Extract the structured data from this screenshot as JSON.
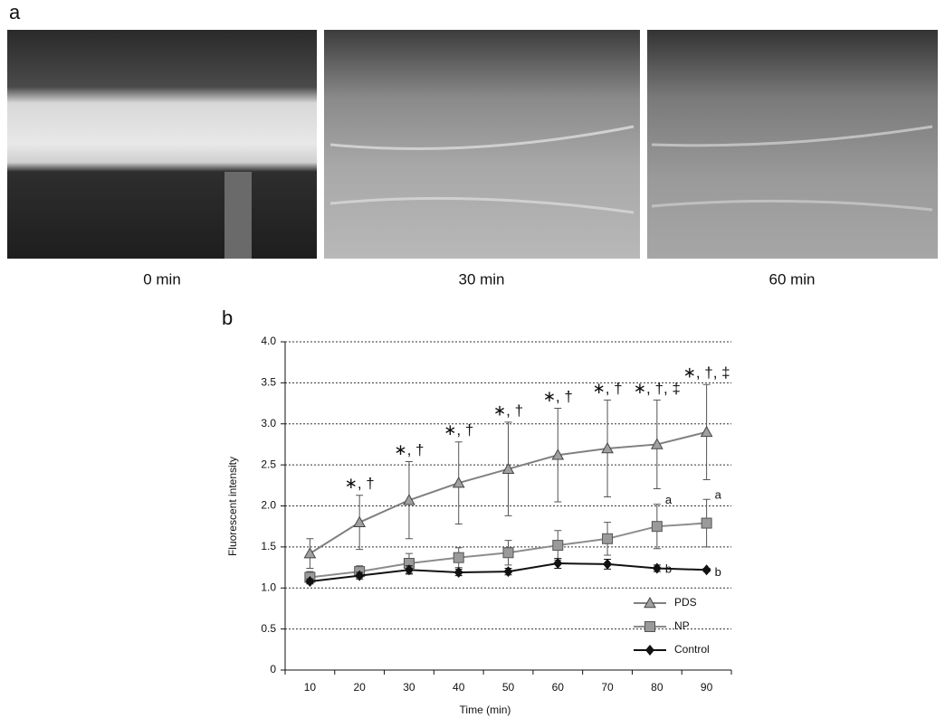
{
  "panels": {
    "a": "a",
    "b": "b"
  },
  "images": [
    {
      "caption": "0 min"
    },
    {
      "caption": "30 min"
    },
    {
      "caption": "60 min"
    }
  ],
  "chart_data": {
    "type": "line",
    "xlabel": "Time (min)",
    "ylabel": "Fluorescent intensity",
    "categories": [
      "10",
      "20",
      "30",
      "40",
      "50",
      "60",
      "70",
      "80",
      "90"
    ],
    "ylim": [
      0,
      4
    ],
    "yticks": [
      0,
      0.5,
      {
        "value": 1,
        "label": "1.0"
      },
      1.5,
      {
        "value": 2,
        "label": "2.0"
      },
      2.5,
      {
        "value": 3,
        "label": "3.0"
      },
      3.5,
      {
        "value": 4,
        "label": "4.0"
      }
    ],
    "grid": true,
    "legend": "lower right",
    "series": [
      {
        "name": "PDS",
        "color": "#808080",
        "marker": "triangle",
        "values": [
          1.42,
          1.8,
          2.07,
          2.28,
          2.45,
          2.62,
          2.7,
          2.75,
          2.9
        ],
        "errors": [
          0.18,
          0.33,
          0.47,
          0.5,
          0.57,
          0.57,
          0.59,
          0.54,
          0.58
        ],
        "point_labels": [
          null,
          "∗, †",
          "∗, †",
          "∗, †",
          "∗, †",
          "∗, †",
          "∗, †",
          "∗, †, ‡",
          "∗, †, ‡"
        ]
      },
      {
        "name": "NP",
        "color": "#8c8c8c",
        "marker": "square",
        "values": [
          1.13,
          1.2,
          1.3,
          1.37,
          1.43,
          1.52,
          1.6,
          1.75,
          1.79
        ],
        "errors": [
          0.07,
          0.07,
          0.12,
          0.12,
          0.15,
          0.18,
          0.2,
          0.27,
          0.29
        ],
        "point_labels": [
          null,
          null,
          null,
          null,
          null,
          null,
          null,
          "a",
          "a"
        ]
      },
      {
        "name": "Control",
        "color": "#111111",
        "marker": "diamond",
        "values": [
          1.08,
          1.15,
          1.22,
          1.19,
          1.2,
          1.3,
          1.29,
          1.24,
          1.22
        ],
        "errors": [
          0.03,
          0.04,
          0.05,
          0.04,
          0.04,
          0.06,
          0.06,
          0.04,
          0.02
        ],
        "point_labels": [
          null,
          null,
          null,
          null,
          null,
          null,
          null,
          "b",
          "b"
        ]
      }
    ]
  }
}
